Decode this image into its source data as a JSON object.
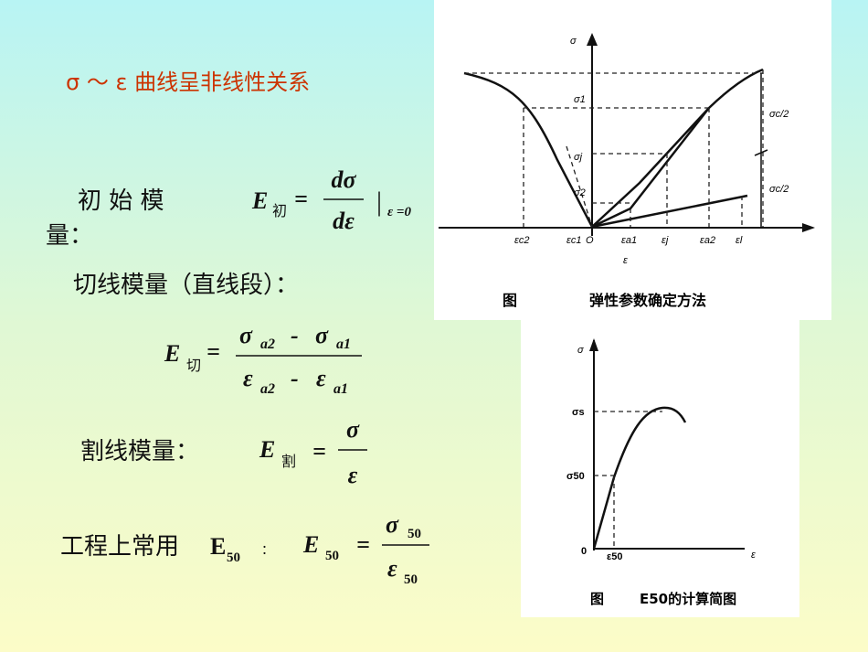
{
  "heading": "σ ～ ε 曲线呈非线性关系",
  "initial_modulus": {
    "label_line1": "初 始 模",
    "label_line2": "量：",
    "symbol": "E",
    "subscript": "初",
    "equals": "=",
    "numerator": "dσ",
    "denominator": "dε",
    "bar": "|",
    "condition": "ε =0"
  },
  "tangent_modulus": {
    "label": "切线模量（直线段）：",
    "symbol": "E",
    "subscript": "切",
    "equals": "=",
    "numerator": [
      {
        "symbol": "σ",
        "subscript": "a2"
      },
      {
        "symbol": "σ",
        "subscript": "a1"
      }
    ],
    "denominator": [
      {
        "symbol": "ε",
        "subscript": "a2"
      },
      {
        "symbol": "ε",
        "subscript": "a1"
      }
    ],
    "minus": "-"
  },
  "secant_modulus": {
    "label": "割线模量：",
    "symbol": "E",
    "subscript": "割",
    "equals": "=",
    "numerator": "σ",
    "denominator": "ε"
  },
  "e50": {
    "label": "工程上常用",
    "label_symbol": "E",
    "label_subscript": "50",
    "colon": "：",
    "symbol": "E",
    "subscript": "50",
    "equals": "=",
    "numerator": {
      "symbol": "σ",
      "subscript": "50"
    },
    "denominator": {
      "symbol": "ε",
      "subscript": "50"
    }
  },
  "figure1": {
    "y_axis": "σ",
    "x_axis": "ε",
    "origin": "O",
    "y_labels": [
      "σ1",
      "σj",
      "σ2"
    ],
    "right_labels": [
      "σc/2",
      "σc/2"
    ],
    "x_labels": [
      "εc2",
      "εc1",
      "εa1",
      "εj",
      "εa2",
      "εl"
    ],
    "caption_prefix": "图",
    "caption": "弹性参数确定方法"
  },
  "figure2": {
    "y_axis": "σ",
    "x_axis": "ε",
    "origin": "0",
    "y_labels": [
      "σs",
      "σ50"
    ],
    "x_label": "ε50",
    "caption_prefix": "图",
    "caption": "E50的计算简图"
  }
}
